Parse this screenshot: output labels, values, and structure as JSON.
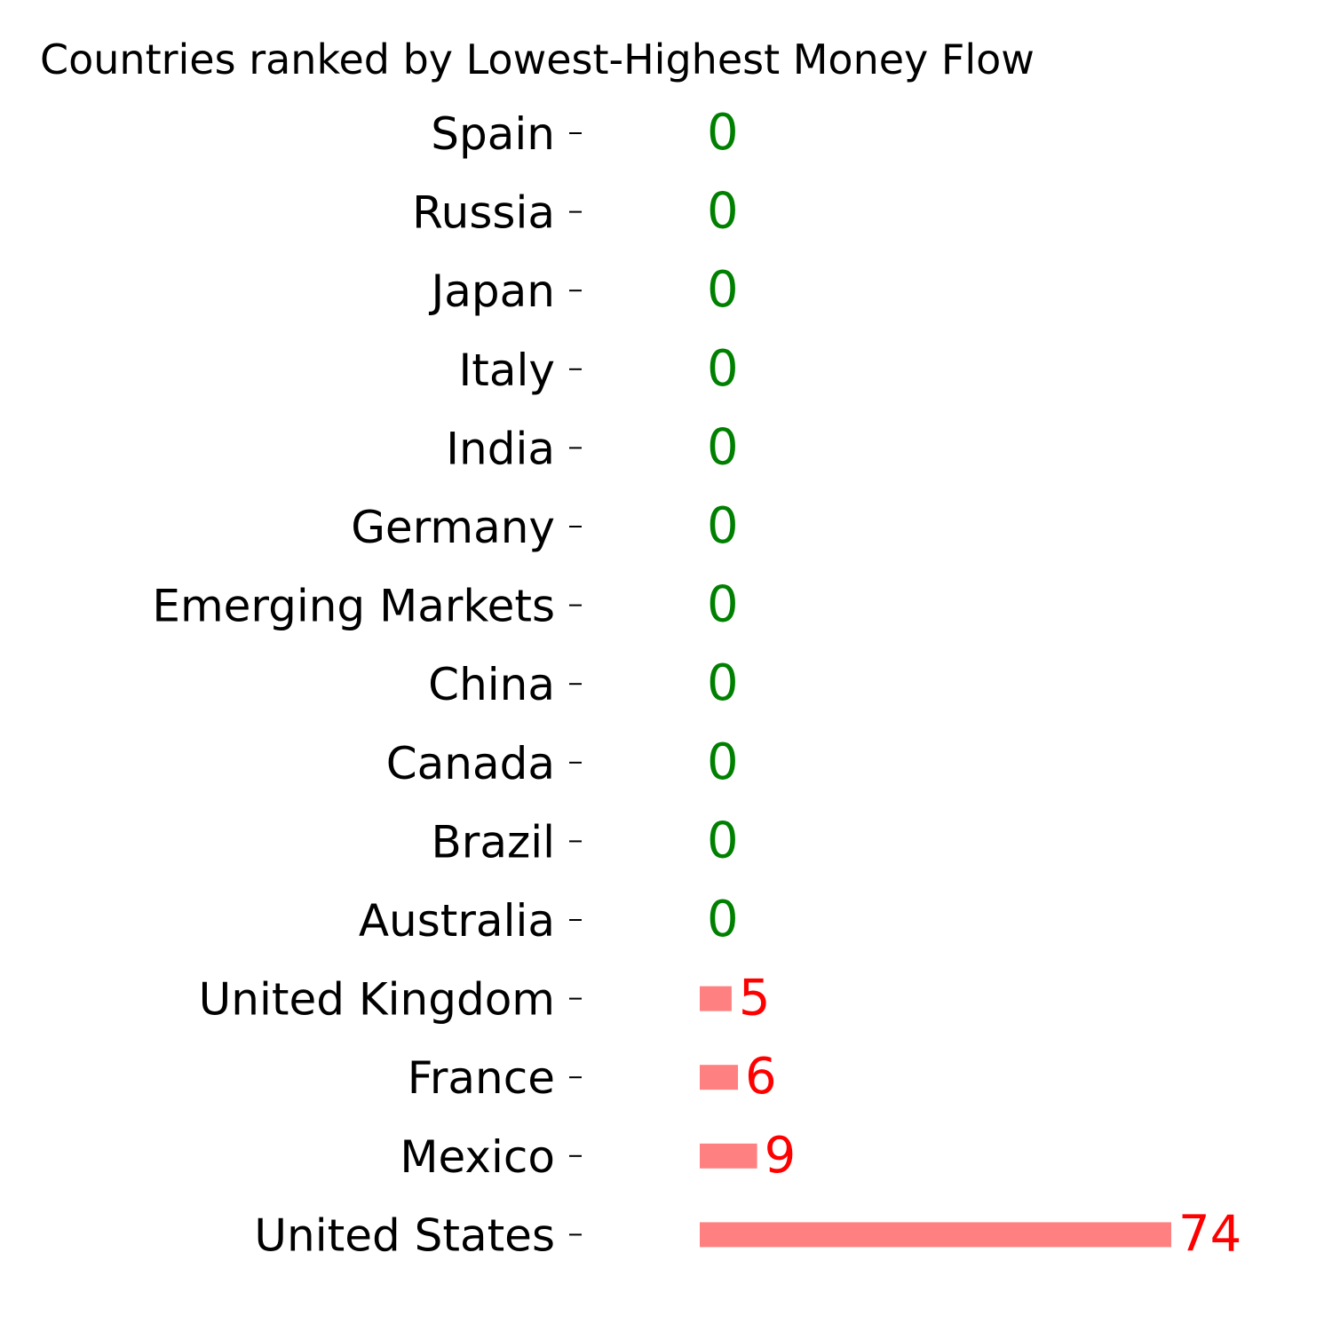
{
  "chart_data": {
    "type": "bar",
    "orientation": "horizontal",
    "title": "Countries ranked by Lowest-Highest Money Flow",
    "xlabel": "",
    "ylabel": "",
    "categories": [
      "Spain",
      "Russia",
      "Japan",
      "Italy",
      "India",
      "Germany",
      "Emerging Markets",
      "China",
      "Canada",
      "Brazil",
      "Australia",
      "United Kingdom",
      "France",
      "Mexico",
      "United States"
    ],
    "values": [
      0,
      0,
      0,
      0,
      0,
      0,
      0,
      0,
      0,
      0,
      0,
      5,
      6,
      9,
      74
    ],
    "xlim": [
      0,
      74
    ],
    "grid": false,
    "legend": "none",
    "colors": {
      "bar": "#ff8080",
      "zero_label": "#008000",
      "positive_label": "#ff0000",
      "axis_text": "#000000"
    }
  }
}
